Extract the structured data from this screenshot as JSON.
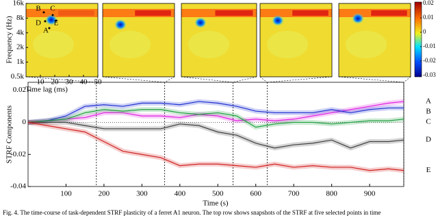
{
  "strf_panels": {
    "ylabel": "Frequency (Hz)",
    "xlabel": "Time lag (ms)",
    "ylim": [
      500,
      16000
    ],
    "log_y": true,
    "yticks": [
      {
        "value": 16000,
        "label": "16k"
      },
      {
        "value": 8000,
        "label": "8k"
      },
      {
        "value": 4000,
        "label": "4k"
      },
      {
        "value": 2000,
        "label": "2k"
      },
      {
        "value": 1000,
        "label": "1k"
      },
      {
        "value": 500,
        "label": "0.5k"
      }
    ],
    "xlim": [
      0,
      50
    ],
    "xticks": [
      10,
      20,
      30,
      40,
      50
    ],
    "point_labels": [
      "A",
      "B",
      "C",
      "D",
      "E"
    ],
    "clim": [
      -0.031,
      0.021
    ],
    "cticks": [
      0.02,
      0.01,
      0,
      -0.01,
      -0.02,
      -0.03
    ]
  },
  "chart_data": {
    "type": "line",
    "xlabel": "Time (s)",
    "ylabel": "STRF Components",
    "x": [
      0,
      50,
      100,
      150,
      200,
      250,
      300,
      350,
      400,
      450,
      500,
      550,
      600,
      650,
      700,
      750,
      800,
      850,
      900,
      950,
      990
    ],
    "series": [
      {
        "name": "A",
        "color": "#e020e0",
        "values": [
          0,
          0.001,
          0.002,
          0.003,
          0.006,
          0.006,
          0.004,
          0.004,
          0.003,
          0.005,
          0.004,
          0.001,
          0.002,
          0.001,
          0.002,
          0.004,
          0.006,
          0.008,
          0.01,
          0.012,
          0.013
        ]
      },
      {
        "name": "B",
        "color": "#2030d0",
        "values": [
          0,
          0.001,
          0.004,
          0.01,
          0.011,
          0.01,
          0.012,
          0.012,
          0.011,
          0.013,
          0.012,
          0.01,
          0.007,
          0.006,
          0.006,
          0.006,
          0.008,
          0.006,
          0.008,
          0.009,
          0.009
        ]
      },
      {
        "name": "C",
        "color": "#20a040",
        "values": [
          0,
          0.001,
          0.002,
          0.006,
          0.008,
          0.007,
          0.008,
          0.008,
          0.006,
          0.005,
          0.006,
          0.004,
          -0.003,
          -0.001,
          0,
          0,
          -0.001,
          0,
          0.001,
          0.001,
          0.002
        ]
      },
      {
        "name": "D",
        "color": "#404040",
        "values": [
          0,
          0,
          0,
          -0.002,
          -0.004,
          -0.004,
          -0.004,
          -0.004,
          -0.001,
          -0.002,
          -0.006,
          -0.008,
          -0.013,
          -0.016,
          -0.014,
          -0.013,
          -0.011,
          -0.016,
          -0.012,
          -0.012,
          -0.011
        ]
      },
      {
        "name": "E",
        "color": "#d02020",
        "values": [
          0,
          -0.002,
          -0.004,
          -0.006,
          -0.012,
          -0.018,
          -0.02,
          -0.022,
          -0.027,
          -0.026,
          -0.026,
          -0.027,
          -0.028,
          -0.026,
          -0.028,
          -0.027,
          -0.028,
          -0.028,
          -0.03,
          -0.029,
          -0.03
        ]
      }
    ],
    "snapshot_times": [
      180,
      360,
      540,
      630,
      990
    ],
    "xlim": [
      0,
      990
    ],
    "xticks": [
      100,
      200,
      300,
      400,
      500,
      600,
      700,
      800,
      900
    ],
    "ylim": [
      -0.04,
      0.025
    ],
    "yticks": [
      0.02,
      0,
      -0.02,
      -0.04
    ],
    "zero_line": true
  },
  "caption": "Fig. 4.   The time-course of task-dependent STRF plasticity of a ferret A1 neuron. The top row shows snapshots of the STRF at five selected points in time"
}
